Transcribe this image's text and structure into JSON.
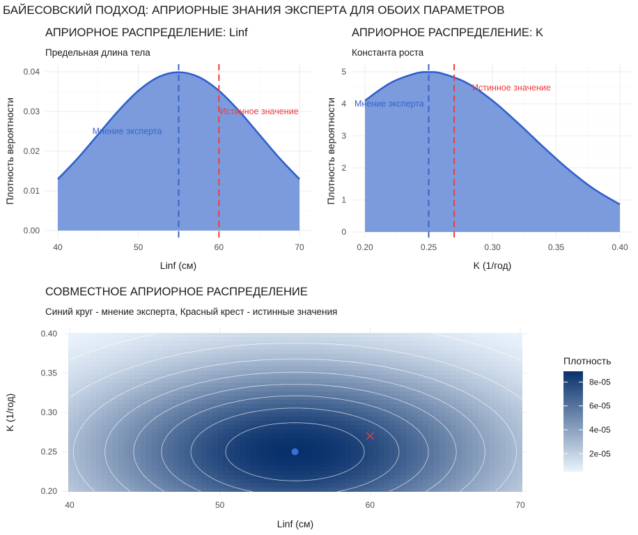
{
  "suptitle": "БАЙЕСОВСКИЙ ПОДХОД: АПРИОРНЫЕ ЗНАНИЯ ЭКСПЕРТА ДЛЯ ОБОИХ ПАРАМЕТРОВ",
  "colors": {
    "fill": "#7b9bdd",
    "line": "#2f5fcc",
    "expert": "#3a63cc",
    "true": "#f03c3c",
    "heat_low": "#eaf3fc",
    "heat_high": "#08306b",
    "contour": "#ffffff"
  },
  "chart_data": [
    {
      "type": "area",
      "title": "АПРИОРНОЕ РАСПРЕДЕЛЕНИЕ: Linf",
      "subtitle": "Предельная длина тела",
      "xlabel": "Linf (см)",
      "ylabel": "Плотность вероятности",
      "xlim": [
        40,
        70
      ],
      "ylim": [
        0,
        0.04
      ],
      "xticks": [
        "40",
        "50",
        "60",
        "70"
      ],
      "yticks": [
        "0.00",
        "0.01",
        "0.02",
        "0.03",
        "0.04"
      ],
      "grid": true,
      "x": [
        40,
        42.5,
        45,
        47.5,
        50,
        52.5,
        55,
        57.5,
        60,
        62.5,
        65,
        67.5,
        70
      ],
      "y": [
        0.01295,
        0.01827,
        0.0242,
        0.03011,
        0.03521,
        0.03867,
        0.03989,
        0.03867,
        0.03521,
        0.03011,
        0.0242,
        0.01827,
        0.01295
      ],
      "vlines": [
        {
          "x": 55,
          "kind": "expert"
        },
        {
          "x": 60,
          "kind": "true"
        }
      ],
      "annotations": [
        {
          "text": "Мнение эксперта",
          "x": 48.6,
          "y": 0.025,
          "kind": "expert"
        },
        {
          "text": "Истинное значение",
          "x": 65,
          "y": 0.03,
          "kind": "true"
        }
      ]
    },
    {
      "type": "area",
      "title": "АПРИОРНОЕ РАСПРЕДЕЛЕНИЕ: K",
      "subtitle": "Константа роста",
      "xlabel": "K (1/год)",
      "ylabel": "Плотность вероятности",
      "xlim": [
        0.2,
        0.4
      ],
      "ylim": [
        0,
        5
      ],
      "xticks": [
        "0.20",
        "0.25",
        "0.30",
        "0.35",
        "0.40"
      ],
      "yticks": [
        "0",
        "1",
        "2",
        "3",
        "4",
        "5"
      ],
      "grid": true,
      "x": [
        0.2,
        0.22,
        0.24,
        0.25,
        0.26,
        0.28,
        0.3,
        0.32,
        0.34,
        0.36,
        0.38,
        0.4
      ],
      "y": [
        4.1,
        4.65,
        4.95,
        4.99,
        4.95,
        4.65,
        4.1,
        3.4,
        2.65,
        1.94,
        1.33,
        0.86
      ],
      "vlines": [
        {
          "x": 0.25,
          "kind": "expert"
        },
        {
          "x": 0.27,
          "kind": "true"
        }
      ],
      "annotations": [
        {
          "text": "Мнение эксперта",
          "x": 0.209,
          "y": 4.0,
          "kind": "expert"
        },
        {
          "text": "Истинное значение",
          "x": 0.315,
          "y": 4.5,
          "kind": "true"
        }
      ]
    },
    {
      "type": "heatmap",
      "title": "СОВМЕСТНОЕ АПРИОРНОЕ РАСПРЕДЕЛЕНИЕ",
      "subtitle": "Синий круг - мнение эксперта, Красный крест - истинные значения",
      "xlabel": "Linf (см)",
      "ylabel": "K (1/год)",
      "xlim": [
        40,
        70
      ],
      "ylim": [
        0.2,
        0.4
      ],
      "xticks": [
        "40",
        "50",
        "60",
        "70"
      ],
      "yticks": [
        "0.20",
        "0.25",
        "0.30",
        "0.35",
        "0.40"
      ],
      "prior": {
        "Linf": {
          "mean": 55,
          "sd": 10
        },
        "K": {
          "mean": 0.25,
          "sd": 0.08
        }
      },
      "density_max": 8.9e-05,
      "contour_levels": [
        1e-05,
        2e-05,
        3e-05,
        4e-05,
        5e-05,
        6e-05,
        7e-05,
        8e-05
      ],
      "expert_point": {
        "Linf": 55,
        "K": 0.25
      },
      "true_point": {
        "Linf": 60,
        "K": 0.27
      },
      "legend": {
        "title": "Плотность",
        "ticks": [
          "2e-05",
          "4e-05",
          "6e-05",
          "8e-05"
        ],
        "tick_values": [
          2e-05,
          4e-05,
          6e-05,
          8e-05
        ],
        "range": [
          5e-06,
          8.9e-05
        ],
        "position": "right"
      }
    }
  ]
}
